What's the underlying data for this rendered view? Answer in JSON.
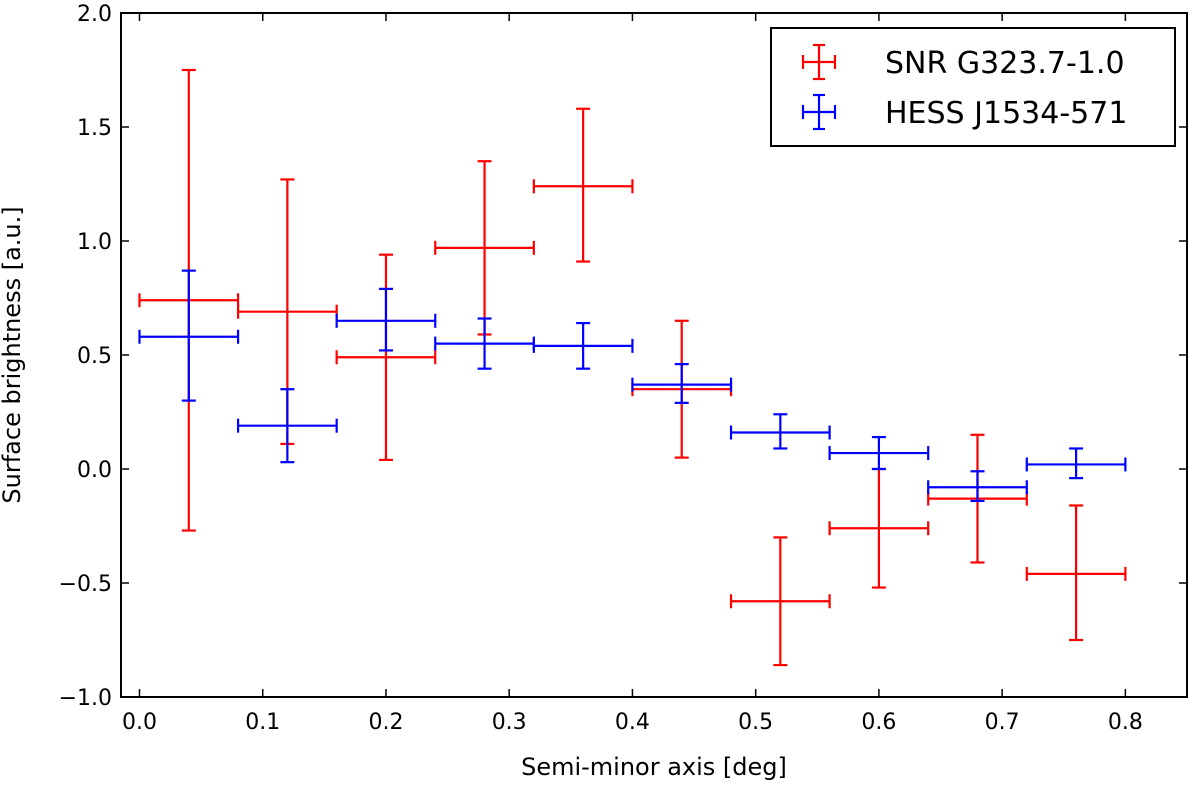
{
  "chart_data": {
    "type": "scatter",
    "subtype": "errorbar",
    "title": "",
    "xlabel": "Semi-minor axis [deg]",
    "ylabel": "Surface brightness [a.u.]",
    "xlim": [
      -0.015,
      0.85
    ],
    "ylim": [
      -1.0,
      2.0
    ],
    "xticks": [
      0.0,
      0.1,
      0.2,
      0.3,
      0.4,
      0.5,
      0.6,
      0.7,
      0.8
    ],
    "xtick_labels": [
      "0.0",
      "0.1",
      "0.2",
      "0.3",
      "0.4",
      "0.5",
      "0.6",
      "0.7",
      "0.8"
    ],
    "yticks": [
      -1.0,
      -0.5,
      0.0,
      0.5,
      1.0,
      1.5,
      2.0
    ],
    "ytick_labels": [
      "−1.0",
      "−0.5",
      "0.0",
      "0.5",
      "1.0",
      "1.5",
      "2.0"
    ],
    "grid": false,
    "legend_position": "top-right",
    "series": [
      {
        "name": "SNR G323.7-1.0",
        "color": "#ff0000",
        "points": [
          {
            "x": 0.04,
            "xerr": 0.04,
            "y": 0.74,
            "ylow": -0.27,
            "yhigh": 1.75
          },
          {
            "x": 0.12,
            "xerr": 0.04,
            "y": 0.69,
            "ylow": 0.11,
            "yhigh": 1.27
          },
          {
            "x": 0.2,
            "xerr": 0.04,
            "y": 0.49,
            "ylow": 0.04,
            "yhigh": 0.94
          },
          {
            "x": 0.28,
            "xerr": 0.04,
            "y": 0.97,
            "ylow": 0.59,
            "yhigh": 1.35
          },
          {
            "x": 0.36,
            "xerr": 0.04,
            "y": 1.24,
            "ylow": 0.91,
            "yhigh": 1.58
          },
          {
            "x": 0.44,
            "xerr": 0.04,
            "y": 0.35,
            "ylow": 0.05,
            "yhigh": 0.65
          },
          {
            "x": 0.52,
            "xerr": 0.04,
            "y": -0.58,
            "ylow": -0.86,
            "yhigh": -0.3
          },
          {
            "x": 0.6,
            "xerr": 0.04,
            "y": -0.26,
            "ylow": -0.52,
            "yhigh": 0.0
          },
          {
            "x": 0.68,
            "xerr": 0.04,
            "y": -0.13,
            "ylow": -0.41,
            "yhigh": 0.15
          },
          {
            "x": 0.76,
            "xerr": 0.04,
            "y": -0.46,
            "ylow": -0.75,
            "yhigh": -0.16
          }
        ]
      },
      {
        "name": "HESS J1534-571",
        "color": "#0000ff",
        "points": [
          {
            "x": 0.04,
            "xerr": 0.04,
            "y": 0.58,
            "ylow": 0.3,
            "yhigh": 0.87
          },
          {
            "x": 0.12,
            "xerr": 0.04,
            "y": 0.19,
            "ylow": 0.03,
            "yhigh": 0.35
          },
          {
            "x": 0.2,
            "xerr": 0.04,
            "y": 0.65,
            "ylow": 0.52,
            "yhigh": 0.79
          },
          {
            "x": 0.28,
            "xerr": 0.04,
            "y": 0.55,
            "ylow": 0.44,
            "yhigh": 0.66
          },
          {
            "x": 0.36,
            "xerr": 0.04,
            "y": 0.54,
            "ylow": 0.44,
            "yhigh": 0.64
          },
          {
            "x": 0.44,
            "xerr": 0.04,
            "y": 0.37,
            "ylow": 0.29,
            "yhigh": 0.46
          },
          {
            "x": 0.52,
            "xerr": 0.04,
            "y": 0.16,
            "ylow": 0.09,
            "yhigh": 0.24
          },
          {
            "x": 0.6,
            "xerr": 0.04,
            "y": 0.07,
            "ylow": 0.0,
            "yhigh": 0.14
          },
          {
            "x": 0.68,
            "xerr": 0.04,
            "y": -0.08,
            "ylow": -0.14,
            "yhigh": -0.01
          },
          {
            "x": 0.76,
            "xerr": 0.04,
            "y": 0.02,
            "ylow": -0.04,
            "yhigh": 0.09
          }
        ]
      }
    ]
  }
}
